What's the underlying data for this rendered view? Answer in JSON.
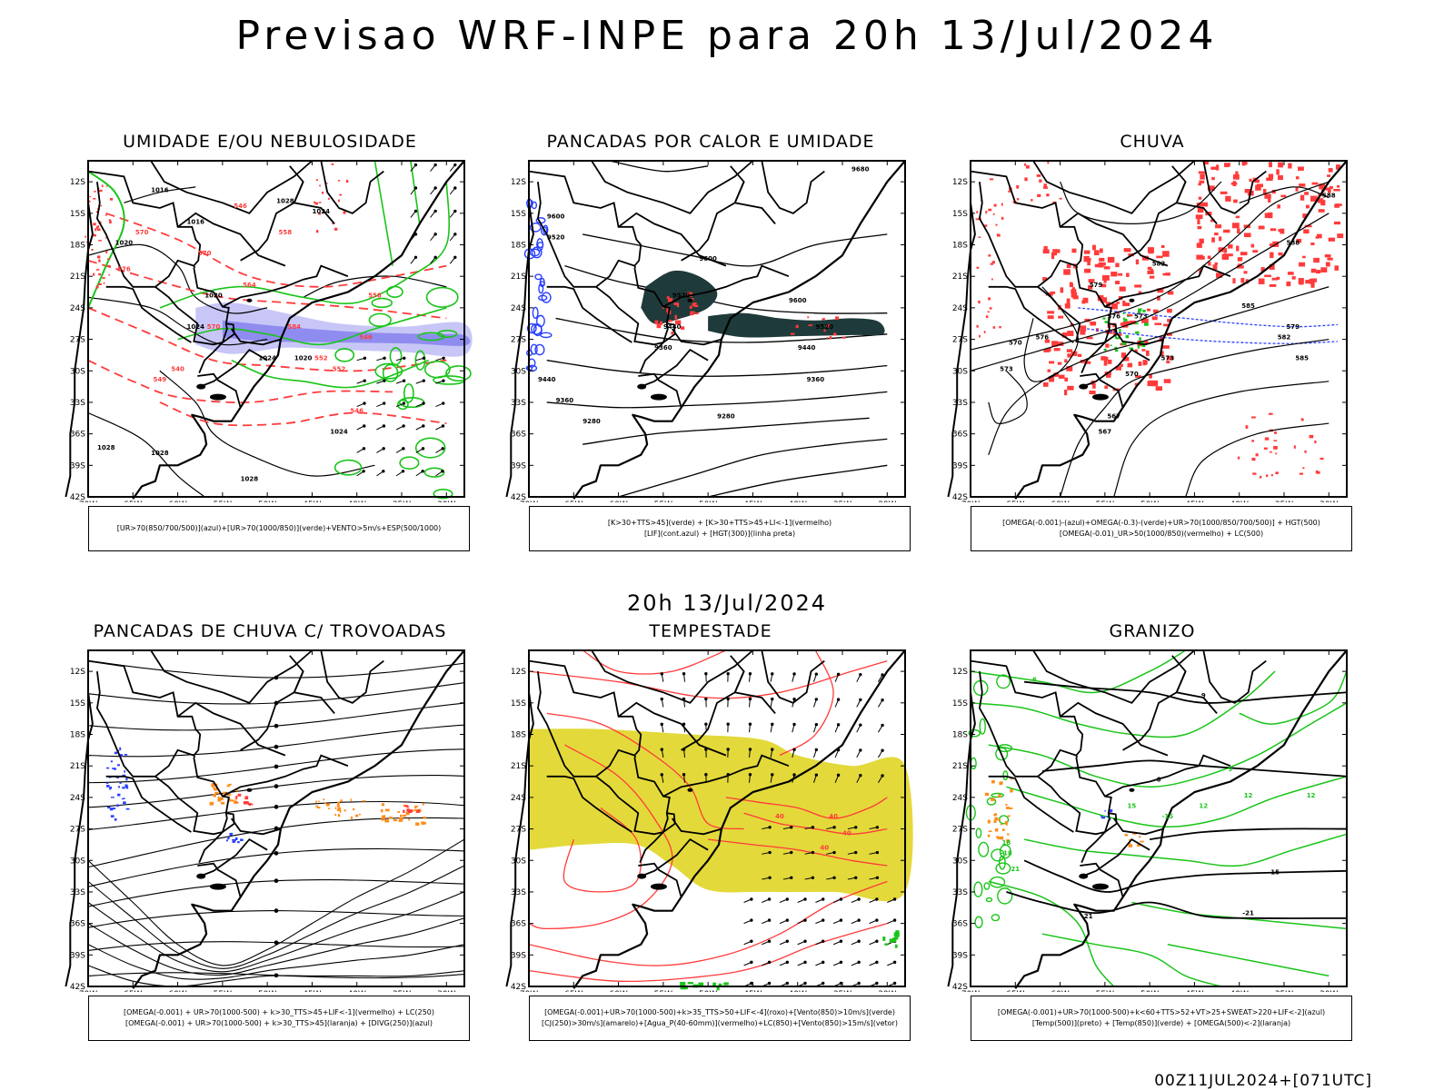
{
  "header": {
    "title": "Previsao WRF-INPE  para 20h 13/Jul/2024"
  },
  "mid_time": "20h 13/Jul/2024",
  "footer": "00Z11JUL2024+[071UTC]",
  "axes": {
    "lat_labels": [
      "12S",
      "15S",
      "18S",
      "21S",
      "24S",
      "27S",
      "30S",
      "33S",
      "36S",
      "39S",
      "42S"
    ],
    "lon_labels": [
      "70W",
      "65W",
      "60W",
      "55W",
      "50W",
      "45W",
      "40W",
      "35W",
      "30W"
    ]
  },
  "colors": {
    "blue": "#2a40ff",
    "green": "#19c419",
    "red": "#ff3b3b",
    "orange": "#ff8c1a",
    "yellow": "#e3d93a",
    "darkteal": "#1f3a3a",
    "lavender": "#a7a6f5",
    "black": "#000000"
  },
  "panels": [
    {
      "id": "umidade",
      "title": "UMIDADE E/OU NEBULOSIDADE",
      "legend": [
        "[UR>70(850/700/500)](azul)+[UR>70(1000/850)](verde)+VENTO>5m/s+ESP(500/1000)"
      ],
      "contour_labels": [
        "1016",
        "1016",
        "1020",
        "1020",
        "1024",
        "1024",
        "1020",
        "1024",
        "1028",
        "1028",
        "1028",
        "1024",
        "1028",
        "570",
        "576",
        "564",
        "570",
        "558",
        "584",
        "552",
        "546",
        "540",
        "549",
        "546",
        "552",
        "558",
        "546",
        "570"
      ]
    },
    {
      "id": "pancadas_calor",
      "title": "PANCADAS POR CALOR E UMIDADE",
      "legend": [
        "[K>30+TTS>45](verde) + [K>30+TTS>45+LI<-1](vermelho)",
        "[LIF](cont.azul) + [HGT(300)](linha preta)"
      ],
      "contour_labels": [
        "9680",
        "9600",
        "9520",
        "9600",
        "9520",
        "9440",
        "9360",
        "9600",
        "9520",
        "9440",
        "9360",
        "9280",
        "9280",
        "9360",
        "9440"
      ]
    },
    {
      "id": "chuva",
      "title": "CHUVA",
      "legend": [
        "[OMEGA(-0.001)-(azul)+OMEGA(-0.3)-(verde)+UR>70(1000/850/700/500)] + HGT(500)",
        "[OMEGA(-0.01)_UR>50(1000/850)(vermelho) + LC(500)"
      ],
      "contour_labels": [
        "588",
        "588",
        "585",
        "582",
        "579",
        "576",
        "573",
        "570",
        "567",
        "573",
        "576",
        "579",
        "582",
        "585",
        "567",
        "570",
        "573"
      ]
    },
    {
      "id": "trovoadas",
      "title": "PANCADAS DE CHUVA C/ TROVOADAS",
      "legend": [
        "[OMEGA(-0.001) + UR>70(1000-500) + k>30_TTS>45+LIF<-1](vermelho) + LC(250)",
        "[OMEGA(-0.001) + UR>70(1000-500) + k>30_TTS>45](laranja) + [DIVG(250)](azul)"
      ],
      "contour_labels": []
    },
    {
      "id": "tempestade",
      "title": "TEMPESTADE",
      "legend": [
        "[OMEGA(-0.001)+UR>70(1000-500)+k>35_TTS>50+LIF<-4](roxo)+[Vento(850)>10m/s](verde)",
        "[CJ(250)>30m/s](amarelo)+[Agua_P(40-60mm)](vermelho)+LC(850)+[Vento(850)>15m/s](vetor)"
      ],
      "contour_labels": [
        "40",
        "40",
        "40",
        "40"
      ]
    },
    {
      "id": "granizo",
      "title": "GRANIZO",
      "legend": [
        "[OMEGA(-0.001)+UR>70(1000-500)+k<60+TTS>52+VT>25+SWEAT>220+LIF<-2](azul)",
        "[Temp(500)](preto) + [Temp(850)](verde) + [OMEGA(500)<-2](laranja)"
      ],
      "contour_labels": [
        "-6",
        "9",
        "12",
        "12",
        "12",
        "15",
        "-15",
        "18",
        "-18",
        "21",
        "-21",
        "15",
        "-21",
        "9",
        "6"
      ]
    }
  ]
}
